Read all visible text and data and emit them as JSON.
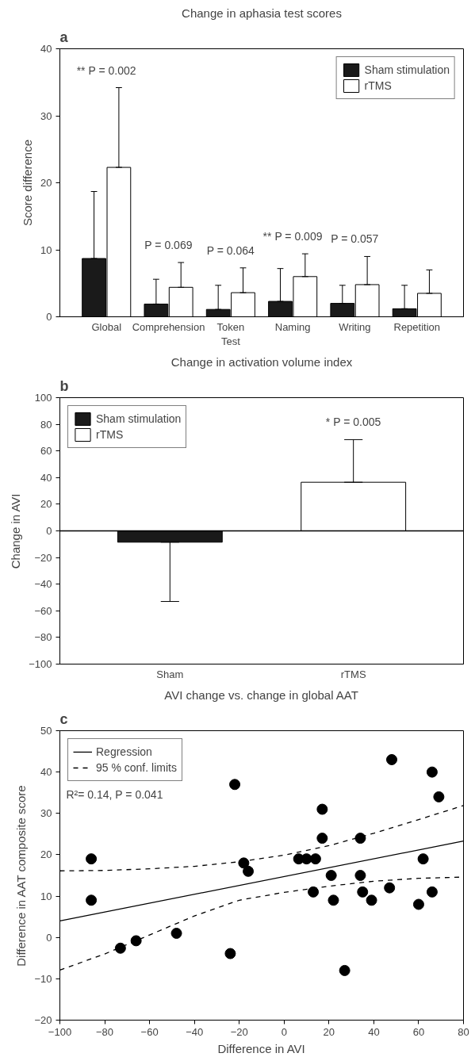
{
  "chart_data": [
    {
      "type": "bar",
      "title": "Change in aphasia test scores",
      "ylabel": "Score difference",
      "categories": [
        "Global",
        "Comprehension",
        "Token Test",
        "Naming",
        "Writing",
        "Repetition"
      ],
      "series": [
        {
          "name": "Sham stimulation",
          "color": "#1a1a1a",
          "values": [
            8.7,
            1.9,
            1.1,
            2.3,
            2.0,
            1.2
          ],
          "errors": [
            [
              8.7,
              18.7
            ],
            [
              1.9,
              5.6
            ],
            [
              1.1,
              4.7
            ],
            [
              2.3,
              7.2
            ],
            [
              2.0,
              4.7
            ],
            [
              1.2,
              4.7
            ]
          ]
        },
        {
          "name": "rTMS",
          "color": "#ffffff",
          "values": [
            22.3,
            4.4,
            3.6,
            6.0,
            4.8,
            3.5
          ],
          "errors": [
            [
              22.3,
              34.2
            ],
            [
              4.4,
              8.1
            ],
            [
              3.6,
              7.3
            ],
            [
              6.0,
              9.4
            ],
            [
              4.8,
              9.0
            ],
            [
              3.5,
              7.0
            ]
          ]
        }
      ],
      "ylim": [
        0,
        40
      ],
      "yticks": [
        0,
        10,
        20,
        30,
        40
      ],
      "legend": "top right",
      "annotations": [
        "a",
        "** P = 0.002",
        "P = 0.069",
        "P = 0.064",
        "** P = 0.009",
        "P = 0.057"
      ]
    },
    {
      "type": "bar",
      "title": "Change in activation volume index",
      "ylabel": "Change in AVI",
      "categories": [
        "Sham",
        "rTMS"
      ],
      "series": [
        {
          "name": "Sham stimulation",
          "color": "#1a1a1a",
          "values": [
            -8.5,
            null
          ],
          "errors": [
            [
              -53,
              -8.5
            ],
            null
          ]
        },
        {
          "name": "rTMS",
          "color": "#ffffff",
          "values": [
            null,
            36.5
          ],
          "errors": [
            null,
            [
              36.5,
              68.5
            ]
          ]
        }
      ],
      "ylim": [
        -100,
        100
      ],
      "yticks": [
        {
          "value": -100,
          "label": "−100"
        },
        {
          "value": -80,
          "label": "−80"
        },
        {
          "value": -60,
          "label": "−60"
        },
        {
          "value": -40,
          "label": "−40"
        },
        {
          "value": -20,
          "label": "−20"
        },
        0,
        20,
        40,
        60,
        80,
        100
      ],
      "ref_lines": [
        {
          "axis": "y",
          "value": 0,
          "color": "#000000"
        }
      ],
      "legend": "top left",
      "annotations": [
        "b",
        "* P = 0.005"
      ]
    },
    {
      "type": "scatter",
      "title": "AVI change vs. change in global AAT",
      "xlabel": "Difference in AVI",
      "ylabel": "Difference in AAT composite score",
      "series": [
        {
          "type": "scatter",
          "color": "#000000",
          "marker": "circle",
          "x": [
            -86,
            -86,
            -73,
            -66,
            -48,
            -24,
            -22,
            -18,
            -16,
            6.5,
            10,
            14,
            17,
            17,
            21,
            22,
            13,
            27,
            34,
            34,
            35,
            39,
            47,
            48,
            60,
            62,
            66,
            66,
            69
          ],
          "values": [
            19,
            9,
            -2.6,
            -0.8,
            1.0,
            -3.9,
            37,
            18,
            16,
            19,
            19,
            19,
            31,
            24,
            15,
            9,
            11,
            -8,
            24,
            15,
            11,
            9,
            12,
            43,
            8,
            19,
            11,
            40,
            34
          ]
        },
        {
          "type": "line",
          "name": "Regression",
          "color": "#000000",
          "line_style": "solid",
          "x": [
            -100,
            80
          ],
          "values": [
            4.0,
            23.3
          ]
        },
        {
          "type": "line",
          "name": "95 % conf. limits",
          "color": "#000000",
          "line_style": "dashed",
          "x": [
            -100,
            -80,
            -60,
            -40,
            -20,
            0,
            20,
            40,
            60,
            80
          ],
          "values": [
            16.1,
            16.2,
            16.6,
            17.2,
            18.3,
            19.9,
            22.2,
            25.2,
            28.5,
            31.9
          ]
        },
        {
          "type": "line",
          "color": "#000000",
          "line_style": "dashed",
          "x": [
            -100,
            -80,
            -60,
            -40,
            -20,
            0,
            20,
            40,
            60,
            80
          ],
          "values": [
            -7.9,
            -4.0,
            0.6,
            5.2,
            9.0,
            10.9,
            12.4,
            13.6,
            14.3,
            14.6
          ]
        }
      ],
      "xlim": [
        -100,
        80
      ],
      "xticks": [
        {
          "value": -100,
          "label": "−100"
        },
        {
          "value": -80,
          "label": "−80"
        },
        {
          "value": -60,
          "label": "−60"
        },
        {
          "value": -40,
          "label": "−40"
        },
        {
          "value": -20,
          "label": "−20"
        },
        0,
        20,
        40,
        60,
        80
      ],
      "ylim": [
        -20,
        50
      ],
      "yticks": [
        {
          "value": -20,
          "label": "−20"
        },
        {
          "value": -10,
          "label": "−10"
        },
        0,
        10,
        20,
        30,
        40,
        50
      ],
      "legend": "top left",
      "annotations": [
        "c",
        "R²= 0.14, P = 0.041"
      ]
    }
  ]
}
